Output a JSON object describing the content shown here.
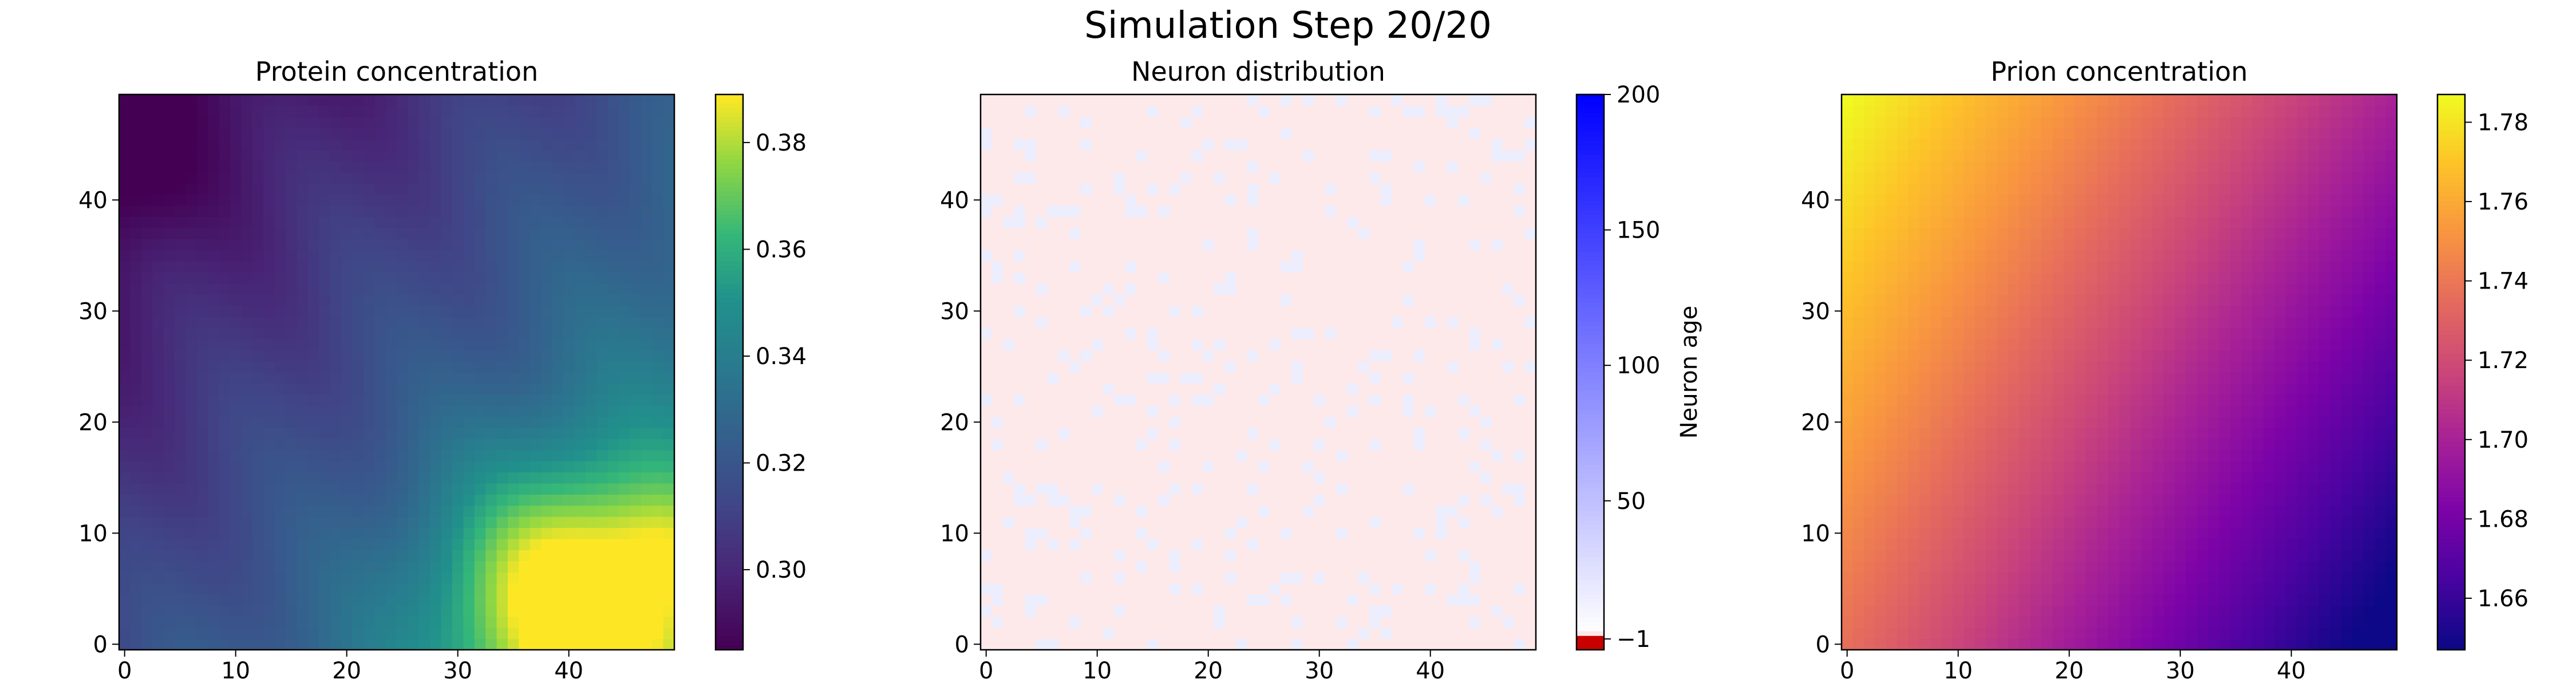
{
  "figure": {
    "suptitle": "Simulation Step 20/20"
  },
  "chart_data": [
    {
      "type": "heatmap",
      "title": "Protein concentration",
      "grid_size": [
        50,
        50
      ],
      "x_ticks": [
        0,
        10,
        20,
        30,
        40
      ],
      "y_ticks": [
        0,
        10,
        20,
        30,
        40
      ],
      "colormap": "viridis",
      "colorbar": {
        "range": [
          0.285,
          0.389
        ],
        "ticks": [
          "0.30",
          "0.32",
          "0.34",
          "0.36",
          "0.38"
        ],
        "label": ""
      },
      "field_description": "dark purple (~0.285) in upper-left, teal (~0.33) across middle, yellow (~0.389) in lower-right around x=40, y=3"
    },
    {
      "type": "heatmap",
      "title": "Neuron distribution",
      "grid_size": [
        50,
        50
      ],
      "x_ticks": [
        0,
        10,
        20,
        30,
        40
      ],
      "y_ticks": [
        0,
        10,
        20,
        30,
        40
      ],
      "colormap": "red-white-blue",
      "colorbar": {
        "range": [
          -5,
          200
        ],
        "ticks": [
          "200",
          "150",
          "100",
          "50",
          "−1"
        ],
        "label": "Neuron age"
      },
      "field_description": "mostly -1 (pale pink background) with scattered cells of low age (pale lavender)"
    },
    {
      "type": "heatmap",
      "title": "Prion concentration",
      "grid_size": [
        50,
        50
      ],
      "x_ticks": [
        0,
        10,
        20,
        30,
        40
      ],
      "y_ticks": [
        0,
        10,
        20,
        30,
        40
      ],
      "colormap": "plasma",
      "colorbar": {
        "range": [
          1.647,
          1.787
        ],
        "ticks": [
          "1.78",
          "1.76",
          "1.74",
          "1.72",
          "1.70",
          "1.68",
          "1.66"
        ],
        "label": ""
      },
      "field_description": "yellow (~1.787) in upper-left, orange/magenta diagonal, dark navy (~1.647) in lower-right"
    }
  ]
}
